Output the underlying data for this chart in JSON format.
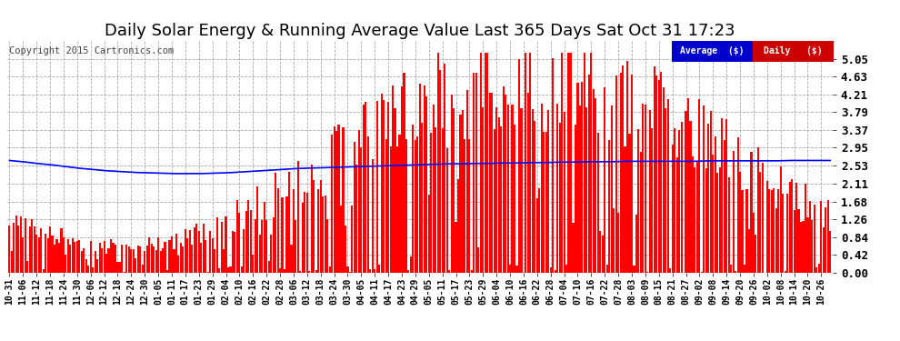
{
  "title": "Daily Solar Energy & Running Average Value Last 365 Days Sat Oct 31 17:23",
  "copyright": "Copyright 2015 Cartronics.com",
  "background_color": "#ffffff",
  "plot_bg_color": "#ffffff",
  "bar_color": "#ff0000",
  "avg_line_color": "#0000ff",
  "ylim": [
    0.0,
    5.47
  ],
  "yticks": [
    0.0,
    0.42,
    0.84,
    1.26,
    1.68,
    2.11,
    2.53,
    2.95,
    3.37,
    3.79,
    4.21,
    4.63,
    5.05
  ],
  "legend_avg_bg": "#0000cc",
  "legend_daily_bg": "#cc0000",
  "legend_text_color": "#ffffff",
  "title_fontsize": 13,
  "n_days": 365,
  "x_labels": [
    "10-31",
    "11-06",
    "11-12",
    "11-18",
    "11-24",
    "11-30",
    "12-06",
    "12-12",
    "12-18",
    "12-24",
    "12-30",
    "01-05",
    "01-11",
    "01-17",
    "01-23",
    "01-29",
    "02-04",
    "02-10",
    "02-16",
    "02-22",
    "02-28",
    "03-06",
    "03-12",
    "03-18",
    "03-24",
    "03-30",
    "04-05",
    "04-11",
    "04-17",
    "04-23",
    "04-29",
    "05-05",
    "05-11",
    "05-17",
    "05-23",
    "05-29",
    "06-04",
    "06-10",
    "06-16",
    "06-22",
    "06-28",
    "07-04",
    "07-10",
    "07-16",
    "07-22",
    "07-28",
    "08-03",
    "08-09",
    "08-15",
    "08-21",
    "08-27",
    "09-02",
    "09-08",
    "09-14",
    "09-20",
    "09-26",
    "10-02",
    "10-08",
    "10-14",
    "10-20",
    "10-26"
  ],
  "avg_line_points": [
    2.65,
    2.62,
    2.58,
    2.55,
    2.51,
    2.47,
    2.44,
    2.41,
    2.39,
    2.37,
    2.36,
    2.35,
    2.34,
    2.34,
    2.34,
    2.35,
    2.36,
    2.38,
    2.4,
    2.42,
    2.44,
    2.46,
    2.47,
    2.48,
    2.49,
    2.5,
    2.51,
    2.52,
    2.53,
    2.54,
    2.55,
    2.56,
    2.57,
    2.57,
    2.58,
    2.58,
    2.59,
    2.59,
    2.6,
    2.6,
    2.61,
    2.61,
    2.62,
    2.62,
    2.62,
    2.63,
    2.63,
    2.63,
    2.63,
    2.63,
    2.63,
    2.64,
    2.64,
    2.64,
    2.64,
    2.64,
    2.64,
    2.65,
    2.65,
    2.65,
    2.65
  ]
}
